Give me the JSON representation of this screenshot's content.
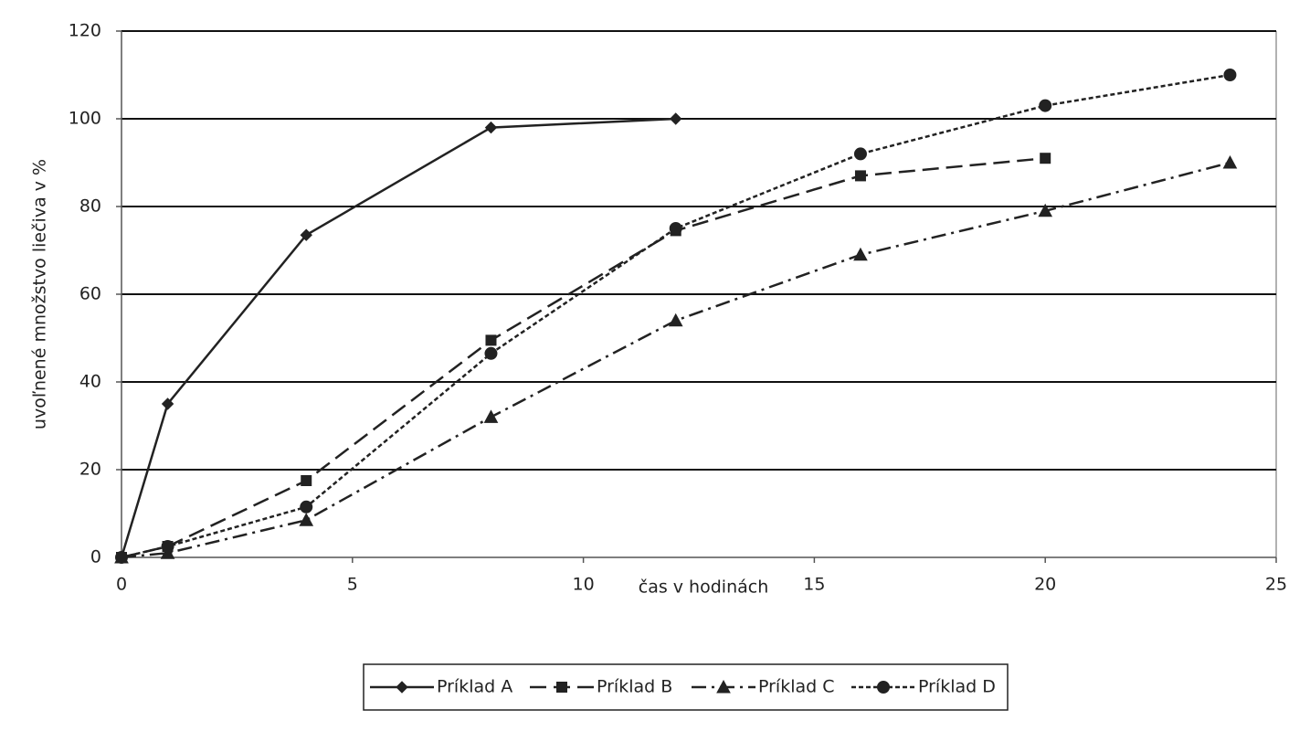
{
  "chart_data": {
    "type": "line",
    "x_label": "čas v hodinách",
    "y_label": "uvoľnené množstvo liečiva v %",
    "xlim": [
      0,
      25
    ],
    "xticks": [
      0,
      5,
      10,
      15,
      20,
      25
    ],
    "ylim": [
      0,
      120
    ],
    "yticks": [
      0,
      20,
      40,
      60,
      80,
      100,
      120
    ],
    "grid": true,
    "legend": "bottom",
    "series": [
      {
        "name": "Príklad A",
        "color": "#222222",
        "line_style": "solid",
        "marker": "diamond",
        "x": [
          0,
          1,
          4,
          8,
          12
        ],
        "values": [
          0,
          35,
          73.5,
          98,
          100
        ]
      },
      {
        "name": "Príklad B",
        "color": "#222222",
        "line_style": "dash",
        "marker": "square",
        "x": [
          0,
          1,
          4,
          8,
          12,
          16,
          20
        ],
        "values": [
          0,
          2.5,
          17.5,
          49.5,
          74.5,
          87,
          91
        ]
      },
      {
        "name": "Príklad C",
        "color": "#222222",
        "line_style": "dashdot",
        "marker": "triangle",
        "x": [
          0,
          1,
          4,
          8,
          12,
          16,
          20,
          24
        ],
        "values": [
          0,
          1,
          8.5,
          32,
          54,
          69,
          79,
          90
        ]
      },
      {
        "name": "Príklad D",
        "color": "#222222",
        "line_style": "dot",
        "marker": "circle",
        "x": [
          0,
          1,
          4,
          8,
          12,
          16,
          20,
          24
        ],
        "values": [
          0,
          2.5,
          11.5,
          46.5,
          75,
          92,
          103,
          110
        ]
      }
    ]
  }
}
